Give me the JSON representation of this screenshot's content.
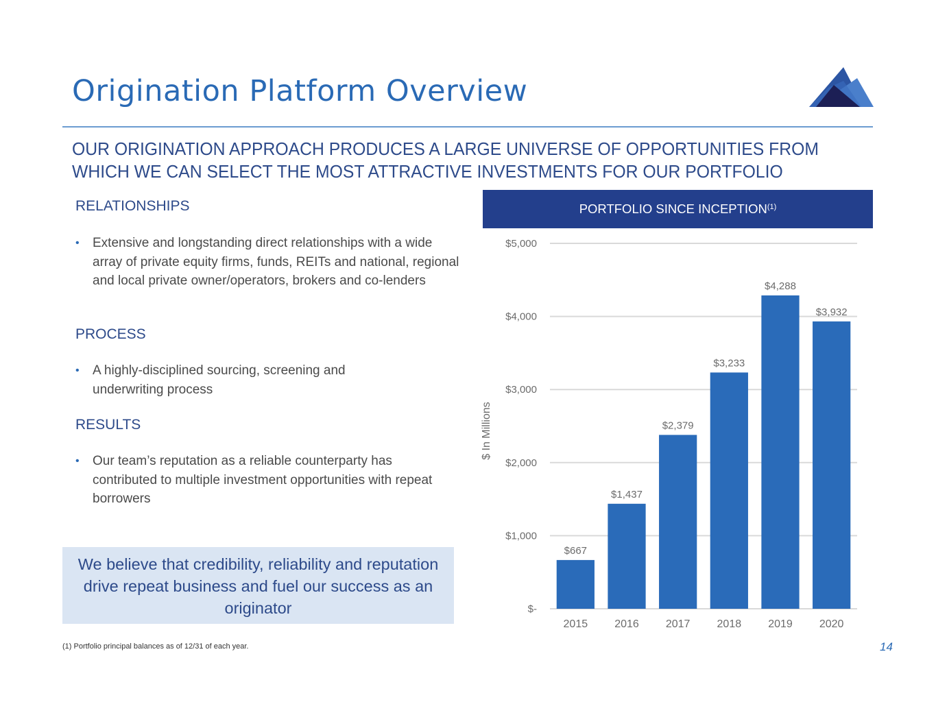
{
  "page": {
    "title": "Origination Platform Overview",
    "subtitle_line1": "OUR ORIGINATION APPROACH PRODUCES A LARGE UNIVERSE OF OPPORTUNITIES FROM",
    "subtitle_line2": "WHICH WE CAN SELECT THE MOST ATTRACTIVE INVESTMENTS FOR OUR PORTFOLIO",
    "logo_icon": "mountain-logo-icon",
    "page_number": "14",
    "footnote": "(1) Portfolio principal balances  as of 12/31 of each year."
  },
  "sections": [
    {
      "heading": "RELATIONSHIPS",
      "bullet": "Extensive and longstanding direct relationships with a wide array of private equity firms, funds, REITs and national, regional and local private owner/operators, brokers and co-lenders"
    },
    {
      "heading": "PROCESS",
      "bullet": "A highly-disciplined sourcing, screening and underwriting process"
    },
    {
      "heading": "RESULTS",
      "bullet": "Our team’s reputation as a reliable counterparty has contributed to multiple investment opportunities with repeat borrowers"
    }
  ],
  "bullet_glyph": "•",
  "callout": "We believe that credibility, reliability and reputation drive repeat business and fuel our success as an originator",
  "chart_header": {
    "label": "PORTFOLIO SINCE INCEPTION",
    "superscript": "(1)"
  },
  "colors": {
    "bar": "#2a6bb9",
    "header_bg": "#233f8c",
    "title": "#2a6ab5",
    "accent_text": "#2d4a8a"
  },
  "chart_data": {
    "type": "bar",
    "title": "PORTFOLIO SINCE INCEPTION(1)",
    "xlabel": "",
    "ylabel": "$ In Millions",
    "categories": [
      "2015",
      "2016",
      "2017",
      "2018",
      "2019",
      "2020"
    ],
    "values": [
      667,
      1437,
      2379,
      3233,
      4288,
      3932
    ],
    "data_labels": [
      "$667",
      "$1,437",
      "$2,379",
      "$3,233",
      "$4,288",
      "$3,932"
    ],
    "ylim": [
      0,
      5000
    ],
    "yticks": [
      0,
      1000,
      2000,
      3000,
      4000,
      5000
    ],
    "ytick_labels": [
      "$-",
      "$1,000",
      "$2,000",
      "$3,000",
      "$4,000",
      "$5,000"
    ],
    "grid": true,
    "legend": "none"
  }
}
